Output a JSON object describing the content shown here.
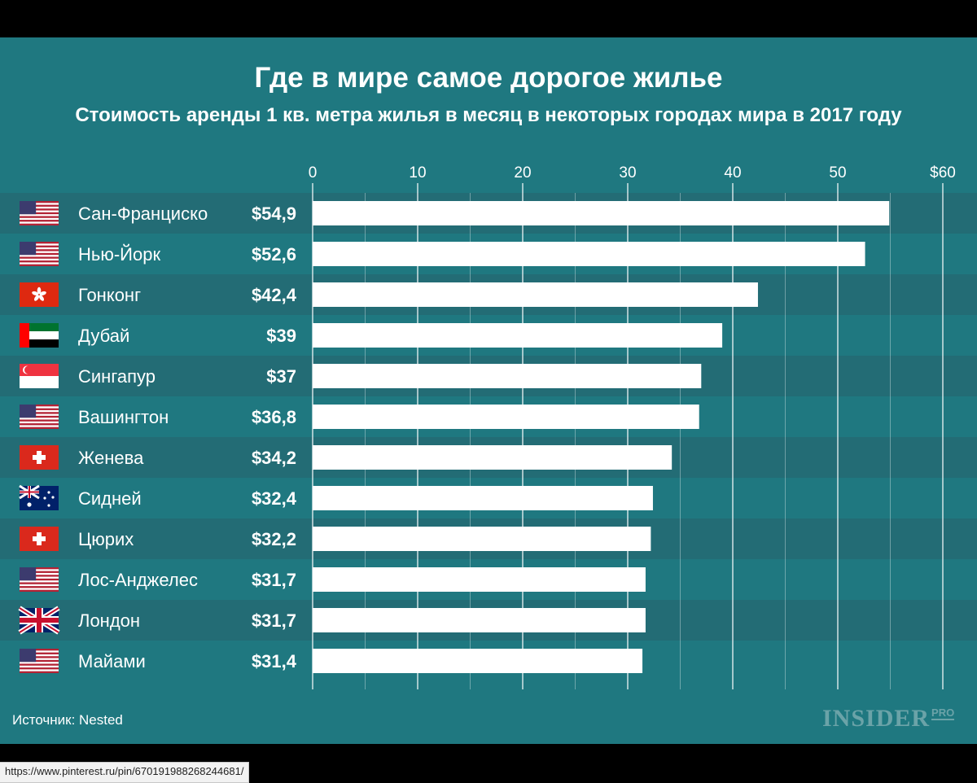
{
  "title": "Где в мире самое дорогое жилье",
  "subtitle": "Стоимость аренды 1 кв. метра жилья в месяц в некоторых городах мира в 2017 году",
  "source": "Источник: Nested",
  "logo": {
    "main": "INSIDER",
    "sub": "PRO"
  },
  "url": "https://www.pinterest.ru/pin/670191988268244681/",
  "colors": {
    "background": "#1f7880",
    "row_alt": "#236c75",
    "bar": "#ffffff",
    "text": "#ffffff"
  },
  "chart_data": {
    "type": "bar",
    "orientation": "horizontal",
    "xlim": [
      0,
      60
    ],
    "ticks": [
      "0",
      "10",
      "20",
      "30",
      "40",
      "50",
      "$60"
    ],
    "grid": true,
    "categories": [
      "Сан-Франциско",
      "Нью-Йорк",
      "Гонконг",
      "Дубай",
      "Сингапур",
      "Вашингтон",
      "Женева",
      "Сидней",
      "Цюрих",
      "Лос-Анджелес",
      "Лондон",
      "Майами"
    ],
    "values": [
      54.9,
      52.6,
      42.4,
      39,
      37,
      36.8,
      34.2,
      32.4,
      32.2,
      31.7,
      31.7,
      31.4
    ],
    "value_labels": [
      "$54,9",
      "$52,6",
      "$42,4",
      "$39",
      "$37",
      "$36,8",
      "$34,2",
      "$32,4",
      "$32,2",
      "$31,7",
      "$31,7",
      "$31,4"
    ],
    "flags": [
      "us-flag-icon",
      "us-flag-icon",
      "hk-flag-icon",
      "ae-flag-icon",
      "sg-flag-icon",
      "us-flag-icon",
      "ch-flag-icon",
      "au-flag-icon",
      "ch-flag-icon",
      "us-flag-icon",
      "gb-flag-icon",
      "us-flag-icon"
    ]
  }
}
